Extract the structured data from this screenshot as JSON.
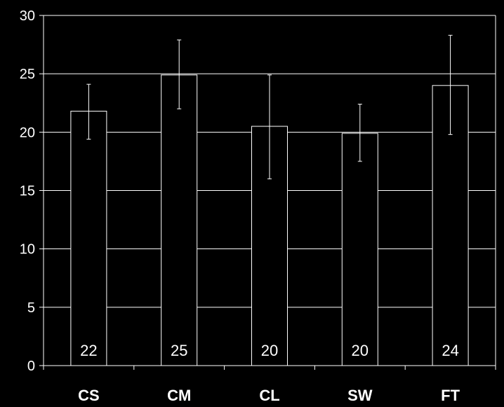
{
  "chart_data": {
    "type": "bar",
    "title": "",
    "xlabel": "",
    "ylabel": "",
    "categories": [
      "CS",
      "CM",
      "CL",
      "SW",
      "FT"
    ],
    "values": [
      21.8,
      24.9,
      20.5,
      19.9,
      24.0
    ],
    "error_low": [
      19.4,
      22.0,
      16.0,
      17.5,
      19.8
    ],
    "error_high": [
      24.1,
      27.9,
      24.9,
      22.4,
      28.3
    ],
    "data_labels": [
      "22",
      "25",
      "20",
      "20",
      "24"
    ],
    "ylim": [
      0,
      30
    ],
    "yticks": [
      "0",
      "5",
      "10",
      "15",
      "20",
      "25",
      "30"
    ],
    "grid": true,
    "colors": {
      "background": "#000000",
      "bar_fill": "#000000",
      "bar_stroke": "#ffffff",
      "grid": "#ffffff",
      "text": "#ffffff"
    }
  }
}
